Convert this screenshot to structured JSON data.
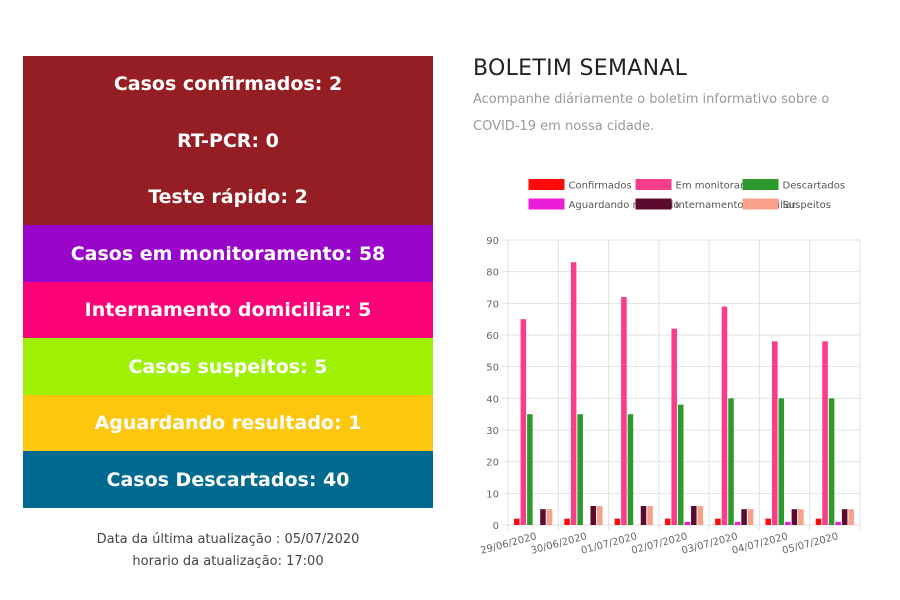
{
  "stats": [
    {
      "label": "Casos confirmados: 2",
      "color": "#951e24"
    },
    {
      "label": "RT-PCR: 0",
      "color": "#951e24"
    },
    {
      "label": "Teste rápido: 2",
      "color": "#951e24"
    },
    {
      "label": "Casos em monitoramento: 58",
      "color": "#9a05ca"
    },
    {
      "label": "Internamento domiciliar: 5",
      "color": "#fb0279"
    },
    {
      "label": "Casos suspeitos: 5",
      "color": "#9ef105"
    },
    {
      "label": "Aguardando resultado: 1",
      "color": "#fdc70d"
    },
    {
      "label": "Casos Descartados: 40",
      "color": "#006a91"
    }
  ],
  "update": {
    "date_line": "Data da última atualização : 05/07/2020",
    "time_line": "horario da atualização: 17:00"
  },
  "bulletin": {
    "title": "BOLETIM SEMANAL",
    "subtitle": "Acompanhe diáriamente o boletim informativo sobre o COVID-19 em nossa cidade."
  },
  "chart_data": {
    "type": "bar",
    "categories": [
      "29/06/2020",
      "30/06/2020",
      "01/07/2020",
      "02/07/2020",
      "03/07/2020",
      "04/07/2020",
      "05/07/2020"
    ],
    "series": [
      {
        "name": "Confirmados",
        "color": "#ff0a0a",
        "values": [
          2,
          2,
          2,
          2,
          2,
          2,
          2
        ]
      },
      {
        "name": "Em monitoramento",
        "color": "#f93d8b",
        "values": [
          65,
          83,
          72,
          62,
          69,
          58,
          58
        ]
      },
      {
        "name": "Descartados",
        "color": "#2d9a2d",
        "values": [
          35,
          35,
          35,
          38,
          40,
          40,
          40
        ]
      },
      {
        "name": "Aguardando resultado",
        "color": "#ea1ed8",
        "values": [
          0,
          0,
          0,
          1,
          1,
          1,
          1
        ]
      },
      {
        "name": "Internamento domiciliar",
        "color": "#5c0b2f",
        "values": [
          5,
          6,
          6,
          6,
          5,
          5,
          5
        ]
      },
      {
        "name": "Suspeitos",
        "color": "#f8a08a",
        "values": [
          5,
          6,
          6,
          6,
          5,
          5,
          5
        ]
      }
    ],
    "ylim": [
      0,
      90
    ],
    "yticks": [
      0,
      10,
      20,
      30,
      40,
      50,
      60,
      70,
      80,
      90
    ],
    "legend_position": "top",
    "grid": true
  }
}
